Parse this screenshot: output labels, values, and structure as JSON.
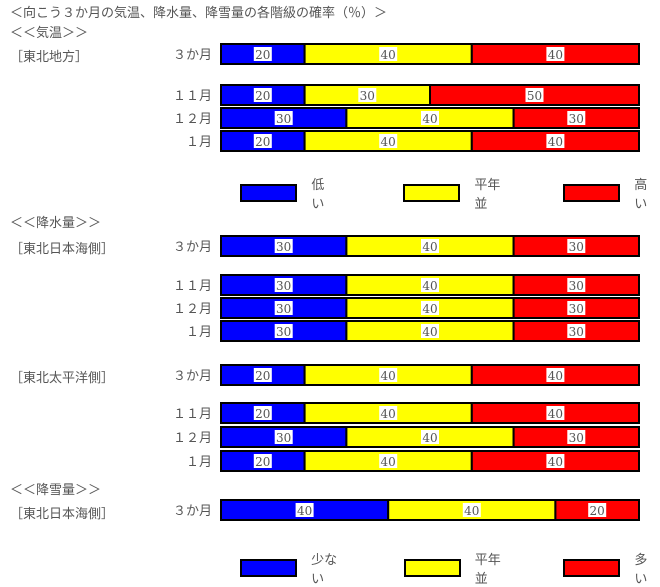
{
  "title": "＜向こう３か月の気温、降水量、降雪量の各階級の確率（％）＞",
  "colors": {
    "low": "#0000ff",
    "normal": "#ffff00",
    "high": "#ff0000",
    "border": "#000000"
  },
  "chart_data": {
    "type": "bar",
    "stacked": true,
    "orientation": "horizontal",
    "xlim": [
      0,
      100
    ],
    "sections": [
      {
        "heading": "＜＜気温＞＞",
        "groups": [
          {
            "region": "［東北地方］",
            "rows": [
              {
                "label": "３か月",
                "values": [
                  20,
                  40,
                  40
                ]
              },
              {
                "label": "１１月",
                "values": [
                  20,
                  30,
                  50
                ]
              },
              {
                "label": "１２月",
                "values": [
                  30,
                  40,
                  30
                ]
              },
              {
                "label": "１月",
                "values": [
                  20,
                  40,
                  40
                ]
              }
            ]
          }
        ],
        "legend": [
          "低い",
          "平年並",
          "高い"
        ]
      },
      {
        "heading": "＜＜降水量＞＞",
        "groups": [
          {
            "region": "［東北日本海側］",
            "rows": [
              {
                "label": "３か月",
                "values": [
                  30,
                  40,
                  30
                ]
              },
              {
                "label": "１１月",
                "values": [
                  30,
                  40,
                  30
                ]
              },
              {
                "label": "１２月",
                "values": [
                  30,
                  40,
                  30
                ]
              },
              {
                "label": "１月",
                "values": [
                  30,
                  40,
                  30
                ]
              }
            ]
          },
          {
            "region": "［東北太平洋側］",
            "rows": [
              {
                "label": "３か月",
                "values": [
                  20,
                  40,
                  40
                ]
              },
              {
                "label": "１１月",
                "values": [
                  20,
                  40,
                  40
                ]
              },
              {
                "label": "１２月",
                "values": [
                  30,
                  40,
                  30
                ]
              },
              {
                "label": "１月",
                "values": [
                  20,
                  40,
                  40
                ]
              }
            ]
          }
        ]
      },
      {
        "heading": "＜＜降雪量＞＞",
        "groups": [
          {
            "region": "［東北日本海側］",
            "rows": [
              {
                "label": "３か月",
                "values": [
                  40,
                  40,
                  20
                ]
              }
            ]
          }
        ],
        "legend": [
          "少ない",
          "平年並",
          "多い"
        ]
      }
    ]
  }
}
